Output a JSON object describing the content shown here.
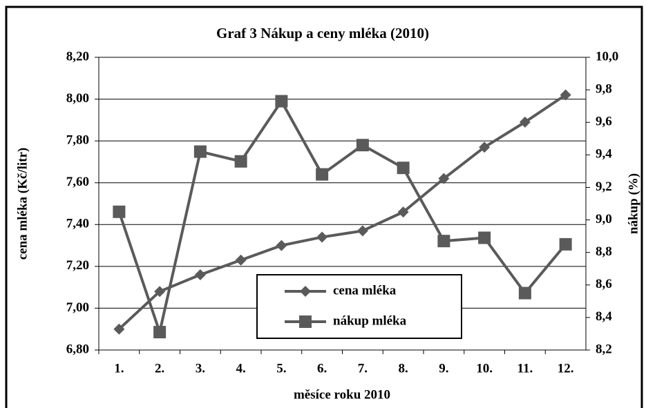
{
  "chart_data": {
    "type": "line",
    "title": "Graf 3 Nákup a ceny mléka (2010)",
    "x_label": "měsíce roku 2010",
    "y_label": "cena mléka (Kč/litr)",
    "y2_label": "nákup (%)",
    "categories": [
      "1.",
      "2.",
      "3.",
      "4.",
      "5.",
      "6.",
      "7.",
      "8.",
      "9.",
      "10.",
      "11.",
      "12."
    ],
    "series": [
      {
        "name": "cena mléka",
        "color": "#5a5a5a",
        "marker": "diamond",
        "axis": "y",
        "values": [
          6.9,
          7.08,
          7.16,
          7.23,
          7.3,
          7.34,
          7.37,
          7.46,
          7.62,
          7.77,
          7.89,
          8.02
        ]
      },
      {
        "name": "nákup mléka",
        "color": "#5a5a5a",
        "marker": "square",
        "axis": "y2",
        "values": [
          9.05,
          8.31,
          9.42,
          9.36,
          9.73,
          9.28,
          9.46,
          9.32,
          8.87,
          8.89,
          8.55,
          8.85
        ]
      }
    ],
    "ylim": [
      6.8,
      8.2
    ],
    "yticks": [
      {
        "value": 6.8,
        "label": "6,80"
      },
      {
        "value": 7.0,
        "label": "7,00"
      },
      {
        "value": 7.2,
        "label": "7,20"
      },
      {
        "value": 7.4,
        "label": "7,40"
      },
      {
        "value": 7.6,
        "label": "7,60"
      },
      {
        "value": 7.8,
        "label": "7,80"
      },
      {
        "value": 8.0,
        "label": "8,00"
      },
      {
        "value": 8.2,
        "label": "8,20"
      }
    ],
    "y2lim": [
      8.2,
      10.0
    ],
    "y2ticks": [
      {
        "value": 8.2,
        "label": "8,2"
      },
      {
        "value": 8.4,
        "label": "8,4"
      },
      {
        "value": 8.6,
        "label": "8,6"
      },
      {
        "value": 8.8,
        "label": "8,8"
      },
      {
        "value": 9.0,
        "label": "9,0"
      },
      {
        "value": 9.2,
        "label": "9,2"
      },
      {
        "value": 9.4,
        "label": "9,4"
      },
      {
        "value": 9.6,
        "label": "9,6"
      },
      {
        "value": 9.8,
        "label": "9,8"
      },
      {
        "value": 10.0,
        "label": "10,0"
      }
    ],
    "grid": true,
    "legend": "lower center"
  }
}
